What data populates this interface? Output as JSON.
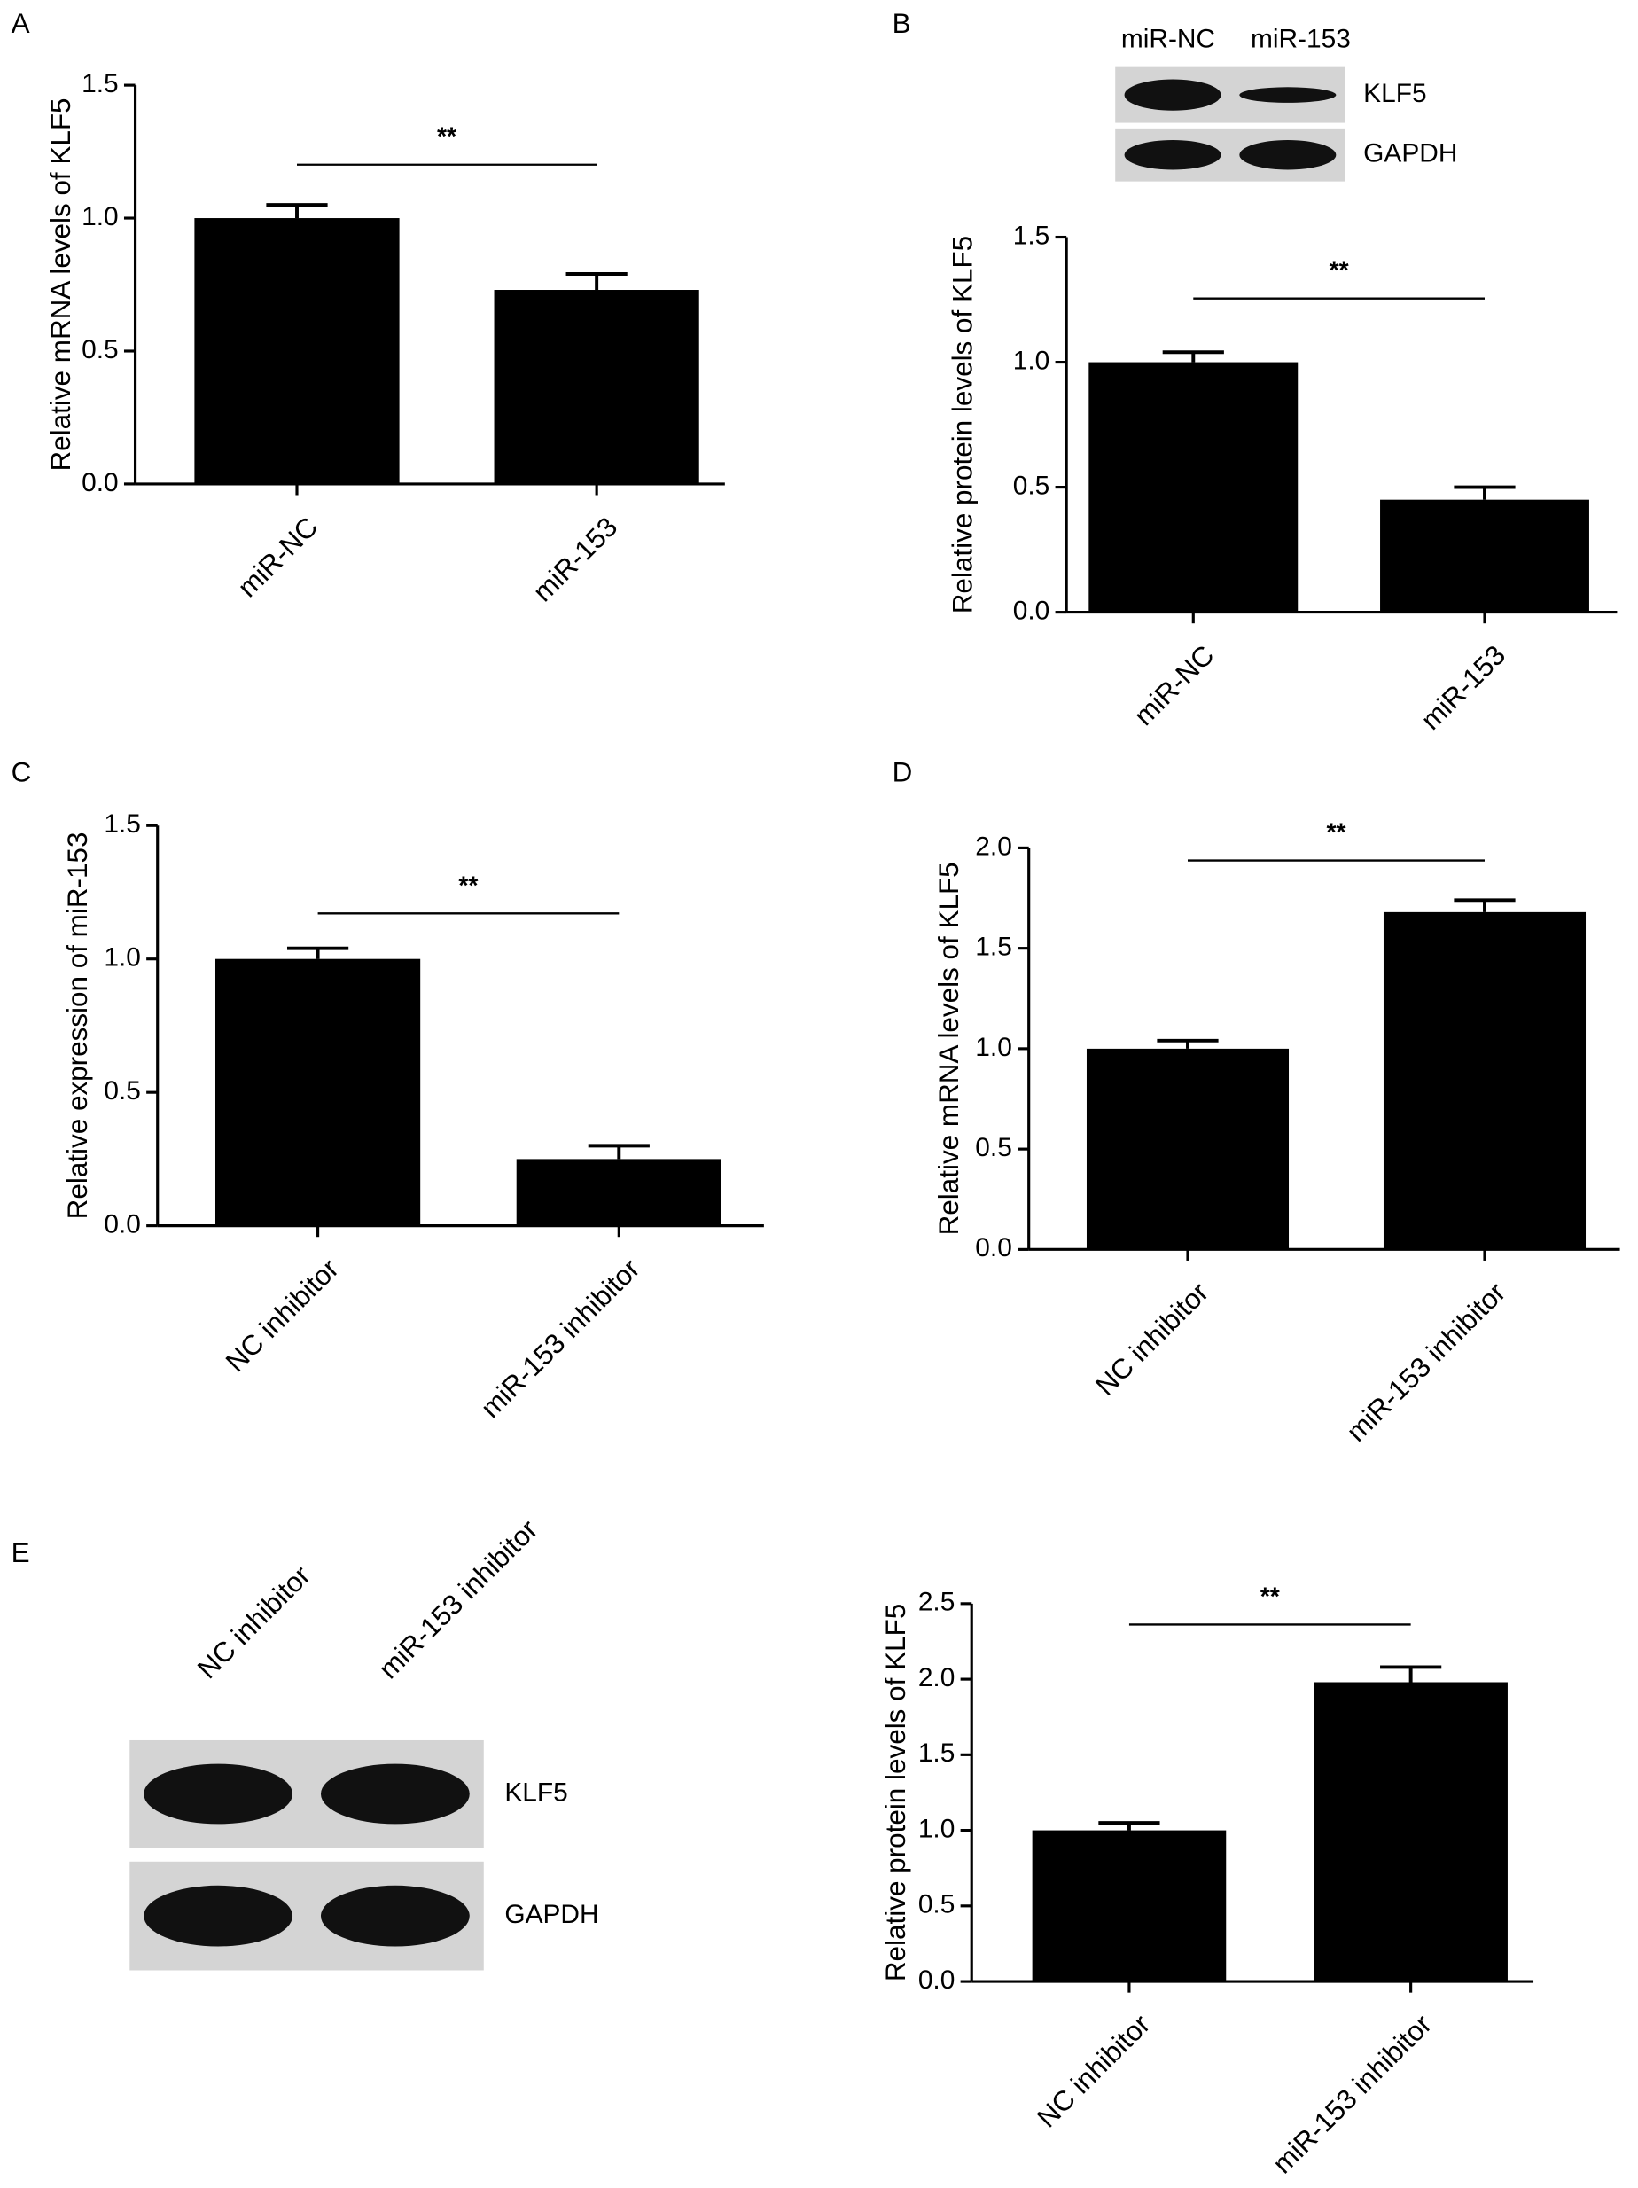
{
  "chart_data": [
    {
      "type": "bar",
      "panel": "A",
      "ylabel": "Relative mRNA levels of KLF5",
      "categories": [
        "miR-NC",
        "miR-153"
      ],
      "values": [
        1.0,
        0.73
      ],
      "errors": [
        0.05,
        0.06
      ],
      "color": "#000000",
      "ylim": [
        0,
        1.5
      ],
      "yticks": [
        {
          "value": 0,
          "label": "0.0"
        },
        {
          "value": 0.5,
          "label": "0.5"
        },
        {
          "value": 1,
          "label": "1.0"
        },
        {
          "value": 1.5,
          "label": "1.5"
        }
      ],
      "significance": "**"
    },
    {
      "type": "bar",
      "panel": "B",
      "ylabel": "Relative protein levels of KLF5",
      "categories": [
        "miR-NC",
        "miR-153"
      ],
      "values": [
        1.0,
        0.45
      ],
      "errors": [
        0.04,
        0.05
      ],
      "color": "#000000",
      "ylim": [
        0,
        1.5
      ],
      "yticks": [
        {
          "value": 0,
          "label": "0.0"
        },
        {
          "value": 0.5,
          "label": "0.5"
        },
        {
          "value": 1,
          "label": "1.0"
        },
        {
          "value": 1.5,
          "label": "1.5"
        }
      ],
      "significance": "**",
      "blot": {
        "lanes": [
          "miR-NC",
          "miR-153"
        ],
        "bands": [
          "KLF5",
          "GAPDH"
        ]
      }
    },
    {
      "type": "bar",
      "panel": "C",
      "ylabel": "Relative expression of miR-153",
      "categories": [
        "NC inhibitor",
        "miR-153 inhibitor"
      ],
      "values": [
        1.0,
        0.25
      ],
      "errors": [
        0.04,
        0.05
      ],
      "color": "#000000",
      "ylim": [
        0,
        1.5
      ],
      "yticks": [
        {
          "value": 0,
          "label": "0.0"
        },
        {
          "value": 0.5,
          "label": "0.5"
        },
        {
          "value": 1,
          "label": "1.0"
        },
        {
          "value": 1.5,
          "label": "1.5"
        }
      ],
      "significance": "**"
    },
    {
      "type": "bar",
      "panel": "D",
      "ylabel": "Relative mRNA levels of KLF5",
      "categories": [
        "NC inhibitor",
        "miR-153 inhibitor"
      ],
      "values": [
        1.0,
        1.68
      ],
      "errors": [
        0.04,
        0.06
      ],
      "color": "#000000",
      "ylim": [
        0,
        2
      ],
      "yticks": [
        {
          "value": 0,
          "label": "0.0"
        },
        {
          "value": 0.5,
          "label": "0.5"
        },
        {
          "value": 1,
          "label": "1.0"
        },
        {
          "value": 1.5,
          "label": "1.5"
        },
        {
          "value": 2,
          "label": "2.0"
        }
      ],
      "significance": "**"
    },
    {
      "type": "bar",
      "panel": "E",
      "ylabel": "Relative protein levels of KLF5",
      "categories": [
        "NC inhibitor",
        "miR-153 inhibitor"
      ],
      "values": [
        1.0,
        1.98
      ],
      "errors": [
        0.05,
        0.1
      ],
      "color": "#000000",
      "ylim": [
        0,
        2.5
      ],
      "yticks": [
        {
          "value": 0,
          "label": "0.0"
        },
        {
          "value": 0.5,
          "label": "0.5"
        },
        {
          "value": 1,
          "label": "1.0"
        },
        {
          "value": 1.5,
          "label": "1.5"
        },
        {
          "value": 2,
          "label": "2.0"
        },
        {
          "value": 2.5,
          "label": "2.5"
        }
      ],
      "significance": "**",
      "blot": {
        "lanes": [
          "NC inhibitor",
          "miR-153 inhibitor"
        ],
        "bands": [
          "KLF5",
          "GAPDH"
        ]
      }
    }
  ]
}
